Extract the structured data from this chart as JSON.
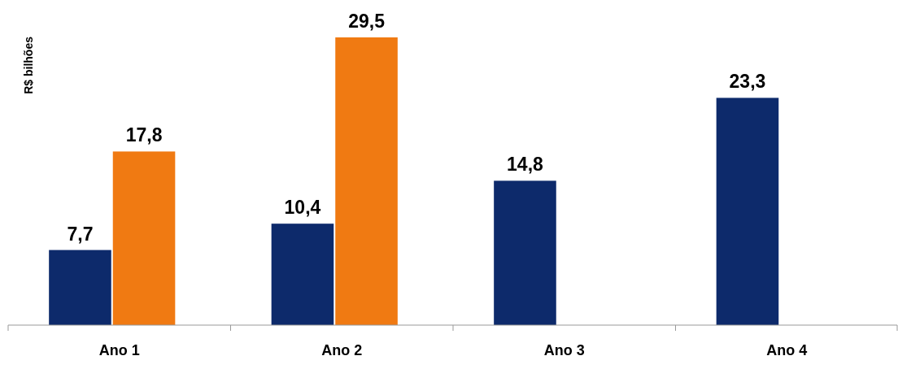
{
  "chart_data": {
    "type": "bar",
    "ylabel": "R$ bilhões",
    "categories": [
      "Ano 1",
      "Ano 2",
      "Ano 3",
      "Ano 4"
    ],
    "series": [
      {
        "color": "#0d2a6b",
        "values": [
          7.7,
          10.4,
          14.8,
          23.3
        ],
        "value_labels": [
          "7,7",
          "10,4",
          "14,8",
          "23,3"
        ]
      },
      {
        "color": "#f07a12",
        "values": [
          17.8,
          29.5,
          null,
          null
        ],
        "value_labels": [
          "17,8",
          "29,5",
          null,
          null
        ]
      }
    ]
  }
}
